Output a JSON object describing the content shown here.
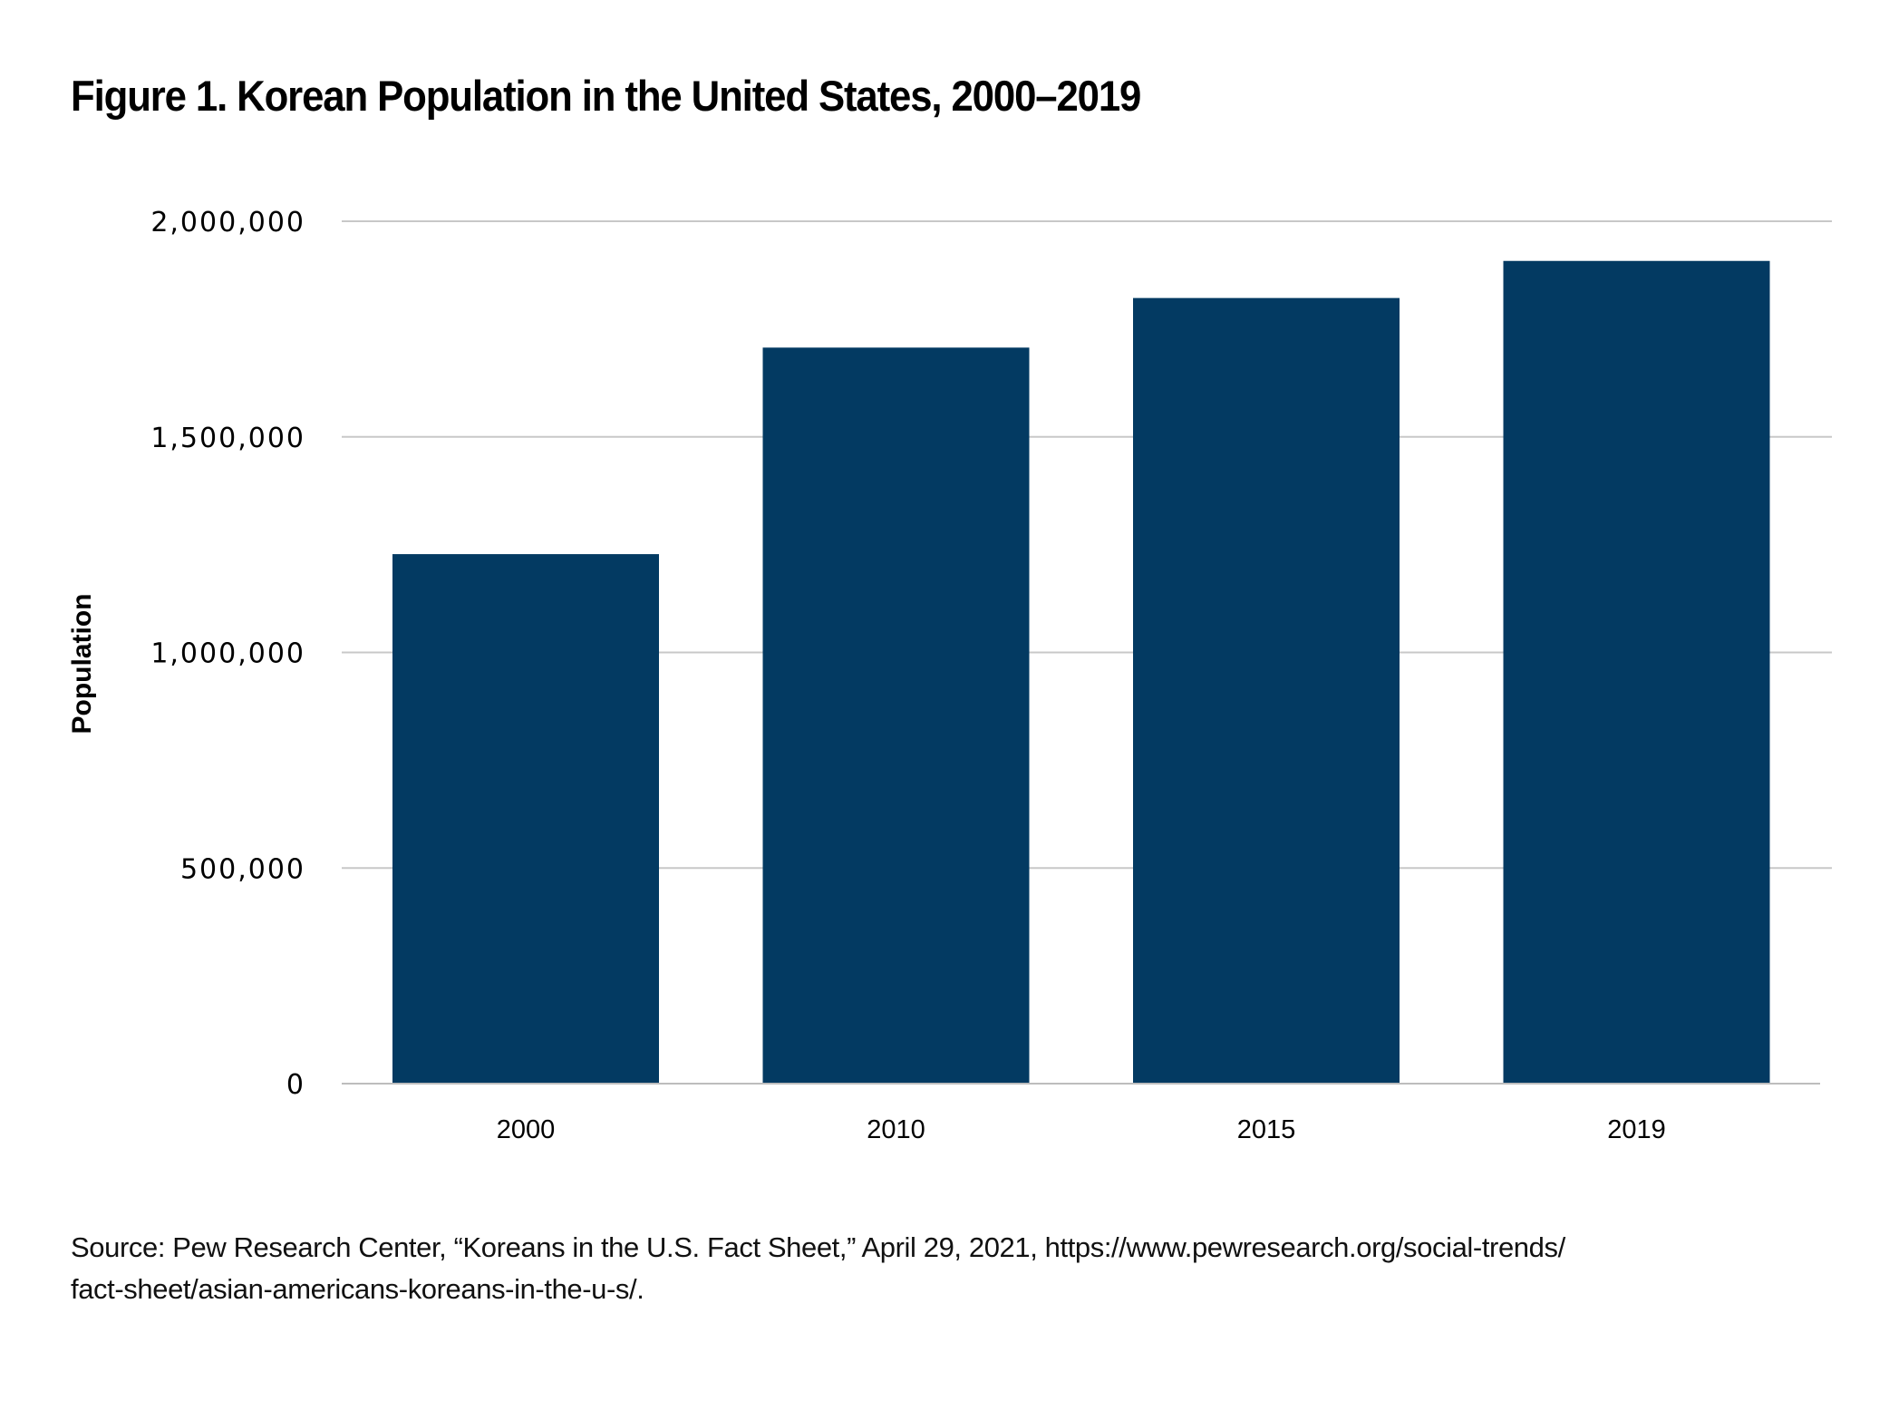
{
  "chart_data": {
    "type": "bar",
    "title": "Figure 1. Korean Population in the United States, 2000–2019",
    "xlabel": "",
    "ylabel": "Population",
    "categories": [
      "2000",
      "2010",
      "2015",
      "2019"
    ],
    "values": [
      1228000,
      1707000,
      1822000,
      1908000
    ],
    "ylim": [
      0,
      2000000
    ],
    "yticks": [
      0,
      500000,
      1000000,
      1500000,
      2000000
    ],
    "ytick_labels": [
      "0",
      "500,000",
      "1,000,000",
      "1,500,000",
      "2,000,000"
    ],
    "grid": true,
    "legend": "none",
    "bar_color": "#033a62",
    "grid_color": "#c8c8c8"
  },
  "source": {
    "line1": "Source:  Pew Research Center, “Koreans in the U.S. Fact Sheet,” April 29, 2021, https://www.pewresearch.org/social-trends/",
    "line2": "fact-sheet/asian-americans-koreans-in-the-u-s/."
  }
}
